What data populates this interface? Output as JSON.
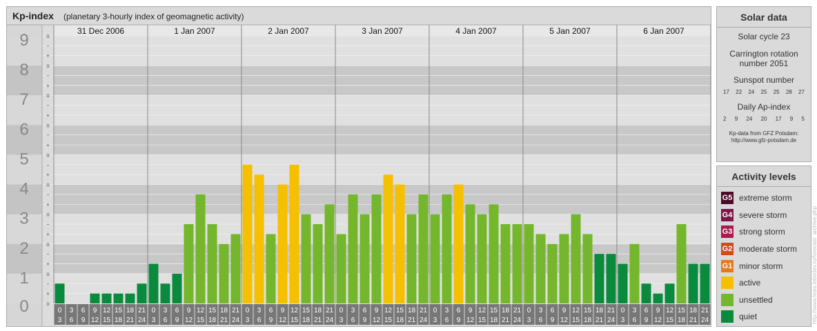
{
  "title": "Kp-index",
  "subtitle": "(planetary 3-hourly index of geomagnetic activity)",
  "chart_data": {
    "type": "bar",
    "y_ticks": [
      "0",
      "1",
      "2",
      "3",
      "4",
      "5",
      "6",
      "7",
      "8",
      "9"
    ],
    "y_minor_labels": [
      "o",
      "+",
      "−"
    ],
    "ylim": [
      0,
      9
    ],
    "days": [
      "31 Dec 2006",
      "1 Jan 2007",
      "2 Jan 2007",
      "3 Jan 2007",
      "4 Jan 2007",
      "5 Jan 2007",
      "6 Jan 2007"
    ],
    "interval_start_labels": [
      "0",
      "3",
      "6",
      "9",
      "12",
      "15",
      "18",
      "21"
    ],
    "interval_end_labels": [
      "3",
      "6",
      "9",
      "12",
      "15",
      "18",
      "21",
      "24"
    ],
    "values": [
      0.667,
      0,
      0,
      0.333,
      0.333,
      0.333,
      0.333,
      0.667,
      1.333,
      0.667,
      1,
      2.667,
      3.667,
      2.667,
      2,
      2.333,
      4.667,
      4.333,
      2.333,
      4,
      4.667,
      3,
      2.667,
      3.333,
      2.333,
      3.667,
      3,
      3.667,
      4.333,
      4,
      3,
      3.667,
      3,
      3.667,
      4,
      3.333,
      3,
      3.333,
      2.667,
      2.667,
      2.667,
      2.333,
      2,
      2.333,
      3,
      2.333,
      1.667,
      1.667,
      1.333,
      2,
      0.667,
      0.333,
      0.667,
      2.667,
      1.333,
      1.333
    ],
    "colors": {
      "quiet": "#0a8a3c",
      "unsettled": "#74b62c",
      "active": "#f5c000",
      "g1": "#e47a1e",
      "g2": "#d24a1e",
      "g3": "#a81a50",
      "g4": "#7a1848",
      "g5": "#4a0a28"
    }
  },
  "solar": {
    "title": "Solar data",
    "cycle": "Solar cycle 23",
    "carrington_1": "Carrington rotation",
    "carrington_2": "number 2051",
    "sunspot_label": "Sunspot number",
    "sunspot_values": [
      "17",
      "22",
      "24",
      "25",
      "25",
      "28",
      "27"
    ],
    "ap_label": "Daily Ap-index",
    "ap_values": [
      "2",
      "9",
      "24",
      "20",
      "17",
      "9",
      "5"
    ],
    "source_1": "Kp-data from GFZ Potsdam:",
    "source_2": "http://www.gfz-potsdam.de"
  },
  "levels": {
    "title": "Activity levels",
    "items": [
      {
        "badge": "G5",
        "label": "extreme storm",
        "color": "#4a0a28"
      },
      {
        "badge": "G4",
        "label": "severe storm",
        "color": "#7a1848"
      },
      {
        "badge": "G3",
        "label": "strong storm",
        "color": "#a81a50"
      },
      {
        "badge": "G2",
        "label": "moderate storm",
        "color": "#d24a1e"
      },
      {
        "badge": "G1",
        "label": "minor storm",
        "color": "#e47a1e"
      },
      {
        "badge": "",
        "label": "active",
        "color": "#f5c000"
      },
      {
        "badge": "",
        "label": "unsettled",
        "color": "#74b62c"
      },
      {
        "badge": "",
        "label": "quiet",
        "color": "#0a8a3c"
      }
    ]
  },
  "watermark": "http://www.tesis.lebedev.ru/forecast_archive.php"
}
